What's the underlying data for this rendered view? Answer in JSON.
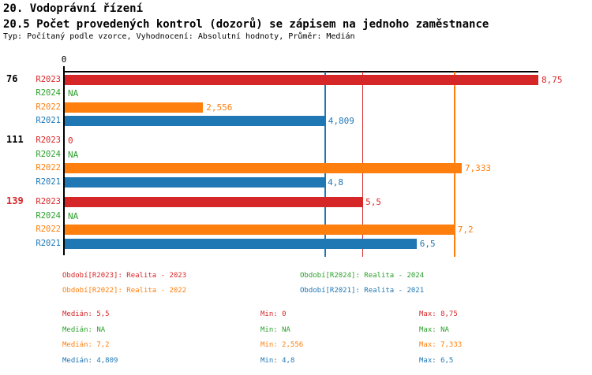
{
  "header": {
    "title": "20. Vodoprávní řízení",
    "subtitle": "20.5 Počet provedených kontrol (dozorů) se zápisem na jednoho zaměstnance",
    "meta": "Typ: Počítaný podle vzorce, Vyhodnocení: Absolutní hodnoty, Průměr: Medián"
  },
  "colors": {
    "r2023_red": "#d62728",
    "r2024_green": "#2ca02c",
    "r2022_orange": "#ff7f0e",
    "r2021_blue": "#1f77b4",
    "axis_black": "#000000"
  },
  "chart_data": {
    "type": "bar",
    "orientation": "horizontal",
    "title": "20.5 Počet provedených kontrol (dozorů) se zápisem na jednoho zaměstnance",
    "xlim": [
      0,
      8.75
    ],
    "x_origin_label": "0",
    "grid": false,
    "series_order": [
      "R2023",
      "R2024",
      "R2022",
      "R2021"
    ],
    "series_colors": {
      "R2023": "#d62728",
      "R2024": "#2ca02c",
      "R2022": "#ff7f0e",
      "R2021": "#1f77b4"
    },
    "groups": [
      {
        "label": "76",
        "label_color": "#000000",
        "values": [
          {
            "series": "R2023",
            "value": 8.75,
            "label": "8,75"
          },
          {
            "series": "R2024",
            "value": null,
            "label": "NA"
          },
          {
            "series": "R2022",
            "value": 2.556,
            "label": "2,556"
          },
          {
            "series": "R2021",
            "value": 4.809,
            "label": "4,809"
          }
        ]
      },
      {
        "label": "111",
        "label_color": "#000000",
        "values": [
          {
            "series": "R2023",
            "value": 0,
            "label": "0"
          },
          {
            "series": "R2024",
            "value": null,
            "label": "NA"
          },
          {
            "series": "R2022",
            "value": 7.333,
            "label": "7,333"
          },
          {
            "series": "R2021",
            "value": 4.8,
            "label": "4,8"
          }
        ]
      },
      {
        "label": "139",
        "label_color": "#d62728",
        "values": [
          {
            "series": "R2023",
            "value": 5.5,
            "label": "5,5"
          },
          {
            "series": "R2024",
            "value": null,
            "label": "NA"
          },
          {
            "series": "R2022",
            "value": 7.2,
            "label": "7,2"
          },
          {
            "series": "R2021",
            "value": 6.5,
            "label": "6,5"
          }
        ]
      }
    ],
    "median_lines": [
      {
        "series": "R2021",
        "value": 4.809,
        "color": "#1f77b4"
      },
      {
        "series": "R2023",
        "value": 5.5,
        "color": "#d62728"
      },
      {
        "series": "R2022",
        "value": 7.2,
        "color": "#ff7f0e"
      }
    ]
  },
  "legend": {
    "items": [
      {
        "text": "Období[R2023]: Realita - 2023",
        "color": "#d62728"
      },
      {
        "text": "Období[R2024]: Realita - 2024",
        "color": "#2ca02c"
      },
      {
        "text": "Období[R2022]: Realita - 2022",
        "color": "#ff7f0e"
      },
      {
        "text": "Období[R2021]: Realita - 2021",
        "color": "#1f77b4"
      }
    ]
  },
  "stats": {
    "rows": [
      {
        "median": "Medián: 5,5",
        "min": "Min: 0",
        "max": "Max: 8,75",
        "color": "#d62728"
      },
      {
        "median": "Medián: NA",
        "min": "Min: NA",
        "max": "Max: NA",
        "color": "#2ca02c"
      },
      {
        "median": "Medián: 7,2",
        "min": "Min: 2,556",
        "max": "Max: 7,333",
        "color": "#ff7f0e"
      },
      {
        "median": "Medián: 4,809",
        "min": "Min: 4,8",
        "max": "Max: 6,5",
        "color": "#1f77b4"
      }
    ]
  }
}
